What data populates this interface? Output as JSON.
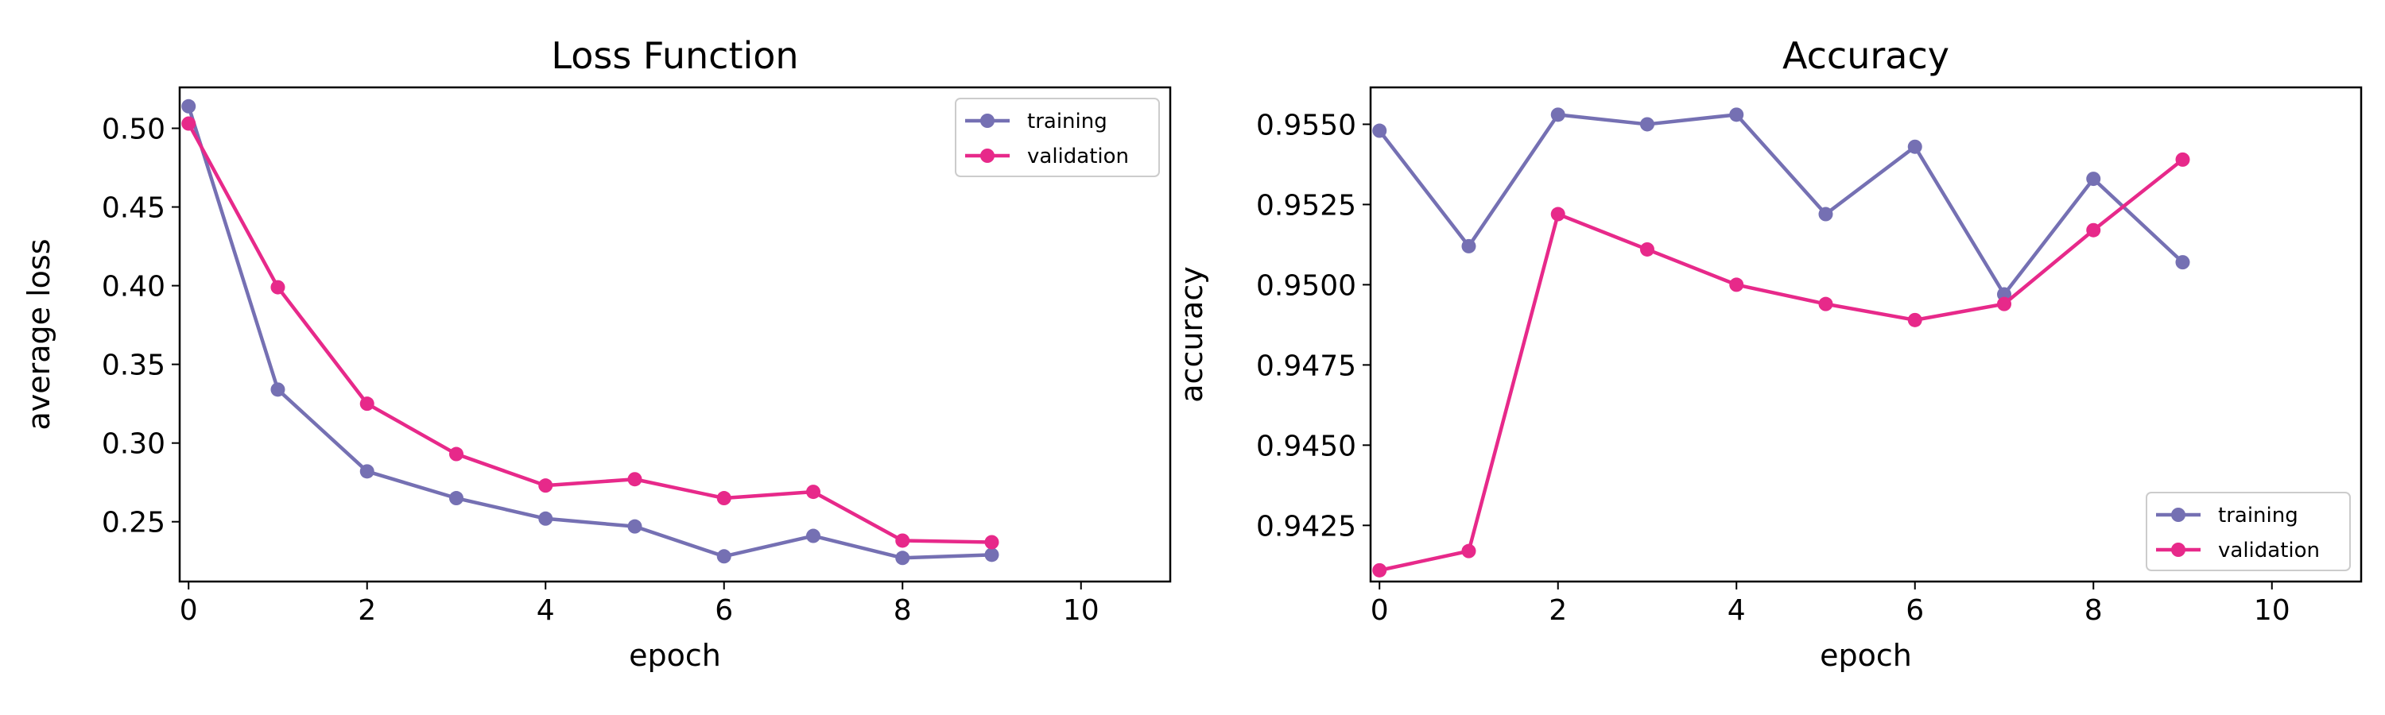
{
  "chart_data": [
    {
      "type": "line",
      "title": "Loss Function",
      "xlabel": "epoch",
      "ylabel": "average loss",
      "xlim": [
        -0.1,
        11
      ],
      "ylim": [
        0.212,
        0.526
      ],
      "xticks": [
        0,
        2,
        4,
        6,
        8,
        10
      ],
      "xtick_labels": [
        "0",
        "2",
        "4",
        "6",
        "8",
        "10"
      ],
      "yticks": [
        0.25,
        0.3,
        0.35,
        0.4,
        0.45,
        0.5
      ],
      "ytick_labels": [
        "0.25",
        "0.30",
        "0.35",
        "0.40",
        "0.45",
        "0.50"
      ],
      "grid": false,
      "legend_position": "top-right",
      "x": [
        0,
        1,
        2,
        3,
        4,
        5,
        6,
        7,
        8,
        9
      ],
      "series": [
        {
          "name": "training",
          "color": "#7570b3",
          "values": [
            0.514,
            0.334,
            0.282,
            0.265,
            0.252,
            0.247,
            0.228,
            0.241,
            0.227,
            0.229
          ]
        },
        {
          "name": "validation",
          "color": "#e7298a",
          "values": [
            0.503,
            0.399,
            0.325,
            0.293,
            0.273,
            0.277,
            0.265,
            0.269,
            0.238,
            0.237
          ]
        }
      ]
    },
    {
      "type": "line",
      "title": "Accuracy",
      "xlabel": "epoch",
      "ylabel": "accuracy",
      "xlim": [
        -0.1,
        11
      ],
      "ylim": [
        0.94075,
        0.95615
      ],
      "xticks": [
        0,
        2,
        4,
        6,
        8,
        10
      ],
      "xtick_labels": [
        "0",
        "2",
        "4",
        "6",
        "8",
        "10"
      ],
      "yticks": [
        0.9425,
        0.945,
        0.9475,
        0.95,
        0.9525,
        0.955
      ],
      "ytick_labels": [
        "0.9425",
        "0.9450",
        "0.9475",
        "0.9500",
        "0.9525",
        "0.9550"
      ],
      "grid": false,
      "legend_position": "lower-right",
      "x": [
        0,
        1,
        2,
        3,
        4,
        5,
        6,
        7,
        8,
        9
      ],
      "series": [
        {
          "name": "training",
          "color": "#7570b3",
          "values": [
            0.9548,
            0.9512,
            0.9553,
            0.955,
            0.9553,
            0.9522,
            0.9543,
            0.9497,
            0.9533,
            0.9507
          ]
        },
        {
          "name": "validation",
          "color": "#e7298a",
          "values": [
            0.9411,
            0.9417,
            0.9522,
            0.9511,
            0.95,
            0.9494,
            0.9489,
            0.9494,
            0.9517,
            0.9539
          ]
        }
      ]
    }
  ]
}
